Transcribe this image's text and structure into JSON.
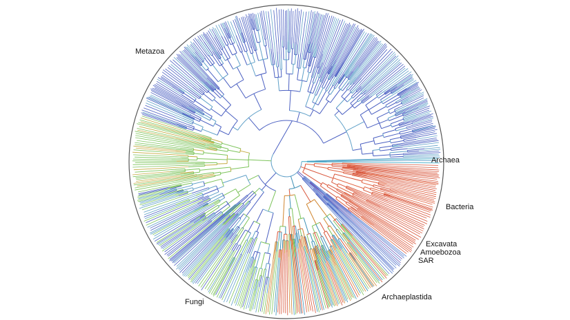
{
  "figure": {
    "ring_color": "#555555",
    "labels": {
      "metazoa": "Metazoa",
      "archaea": "Archaea",
      "bacteria": "Bacteria",
      "excavata": "Excavata",
      "amoebozoa": "Amoebozoa",
      "sar": "SAR",
      "archaeplastida": "Archaeplastida",
      "fungi": "Fungi"
    },
    "clade_colors": {
      "metazoa": "#4a5fc1",
      "metazoa_alt": "#5fa0c8",
      "fungi": "#7cc35a",
      "fungi_alt": "#c4a93f",
      "archaeplastida": "#3c8fb5",
      "archaeplastida_alt": "#d0852e",
      "bacteria": "#d8553a",
      "archaea": "#3aa8c4",
      "sar": "#4b63c4",
      "amoebozoa": "#5b7fd0",
      "excavata": "#6d58b8"
    }
  }
}
